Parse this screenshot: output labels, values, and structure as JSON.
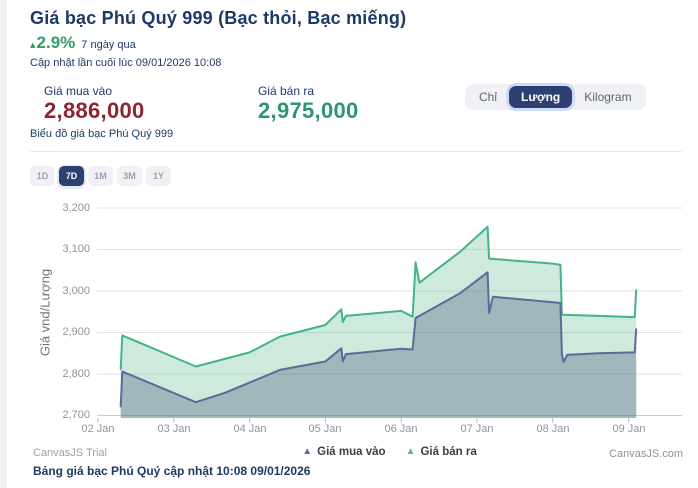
{
  "header": {
    "title": "Giá bạc Phú Quý 999 (Bạc thỏi, Bạc miếng)",
    "change_arrow": "▴",
    "change_percent": "2.9%",
    "change_period": "7 ngày qua",
    "last_updated": "Cập nhật lần cuối lúc 09/01/2026 10:08"
  },
  "prices": {
    "buy_label": "Giá mua vào",
    "buy_value": "2,886,000",
    "sell_label": "Giá bán ra",
    "sell_value": "2,975,000"
  },
  "unit_toggle": {
    "options": [
      {
        "label": "Chỉ",
        "selected": false
      },
      {
        "label": "Lượng",
        "selected": true
      },
      {
        "label": "Kilogram",
        "selected": false
      }
    ]
  },
  "chart_section": {
    "subtitle": "Biểu đồ giá bạc Phú Quý 999"
  },
  "range_buttons": [
    {
      "label": "1D",
      "selected": false
    },
    {
      "label": "7D",
      "selected": true
    },
    {
      "label": "1M",
      "selected": false
    },
    {
      "label": "3M",
      "selected": false
    },
    {
      "label": "1Y",
      "selected": false
    }
  ],
  "chart_data": {
    "type": "area",
    "title": "",
    "xlabel": "",
    "ylabel": "Giá vnd/Lượng",
    "ylim": [
      2700,
      3200
    ],
    "grid": true,
    "legend_position": "bottom",
    "unit_note": "values in nghìn VND per Lượng (x1000 VND)",
    "y_ticks": [
      {
        "value": 3200,
        "label": "3,200"
      },
      {
        "value": 3100,
        "label": "3,100"
      },
      {
        "value": 3000,
        "label": "3,000"
      },
      {
        "value": 2900,
        "label": "2,900"
      },
      {
        "value": 2800,
        "label": "2,800"
      },
      {
        "value": 2700,
        "label": "2,700"
      }
    ],
    "x_ticks": [
      {
        "day": 0,
        "label": "02 Jan"
      },
      {
        "day": 1,
        "label": "03 Jan"
      },
      {
        "day": 2,
        "label": "04 Jan"
      },
      {
        "day": 3,
        "label": "05 Jan"
      },
      {
        "day": 4,
        "label": "06 Jan"
      },
      {
        "day": 5,
        "label": "07 Jan"
      },
      {
        "day": 6,
        "label": "08 Jan"
      },
      {
        "day": 7,
        "label": "09 Jan"
      }
    ],
    "baseline": 2700,
    "series": [
      {
        "name": "Giá mua vào",
        "color": "#5b6a99",
        "fill": "rgba(95,115,144,0.42)",
        "points": [
          [
            0.3,
            2722
          ],
          [
            0.32,
            2806
          ],
          [
            1.29,
            2732
          ],
          [
            1.68,
            2755
          ],
          [
            2.4,
            2810
          ],
          [
            3.0,
            2830
          ],
          [
            3.21,
            2862
          ],
          [
            3.23,
            2830
          ],
          [
            3.27,
            2848
          ],
          [
            4.0,
            2861
          ],
          [
            4.15,
            2859
          ],
          [
            4.19,
            2935
          ],
          [
            4.78,
            2995
          ],
          [
            5.14,
            3045
          ],
          [
            5.16,
            2947
          ],
          [
            5.21,
            2986
          ],
          [
            6.0,
            2973
          ],
          [
            6.1,
            2971
          ],
          [
            6.12,
            2848
          ],
          [
            6.14,
            2829
          ],
          [
            6.19,
            2846
          ],
          [
            6.6,
            2850
          ],
          [
            7.08,
            2852
          ],
          [
            7.1,
            2908
          ]
        ]
      },
      {
        "name": "Giá bán ra",
        "color": "#44b389",
        "fill": "rgba(94,184,140,0.30)",
        "points": [
          [
            0.3,
            2812
          ],
          [
            0.32,
            2893
          ],
          [
            1.29,
            2818
          ],
          [
            2.0,
            2852
          ],
          [
            2.4,
            2890
          ],
          [
            3.0,
            2918
          ],
          [
            3.21,
            2956
          ],
          [
            3.23,
            2925
          ],
          [
            3.27,
            2940
          ],
          [
            4.0,
            2952
          ],
          [
            4.15,
            2938
          ],
          [
            4.19,
            3069
          ],
          [
            4.24,
            3020
          ],
          [
            4.78,
            3095
          ],
          [
            5.14,
            3155
          ],
          [
            5.16,
            3078
          ],
          [
            6.0,
            3066
          ],
          [
            6.1,
            3063
          ],
          [
            6.12,
            2943
          ],
          [
            6.6,
            2940
          ],
          [
            7.08,
            2937
          ],
          [
            7.1,
            3002
          ]
        ]
      }
    ]
  },
  "footer": {
    "trial": "CanvasJS Trial",
    "credit": "CanvasJS.com",
    "table_caption": "Bảng giá bạc Phú Quý cập nhật 10:08 09/01/2026"
  },
  "colors": {
    "navy": "#1d3a67",
    "accent_selected": "#2e3f72",
    "green_change": "#2f9e68",
    "buy_red": "#8e2433",
    "sell_green": "#2b9574",
    "buy_series": "#5b6a99",
    "sell_series": "#44b389"
  }
}
